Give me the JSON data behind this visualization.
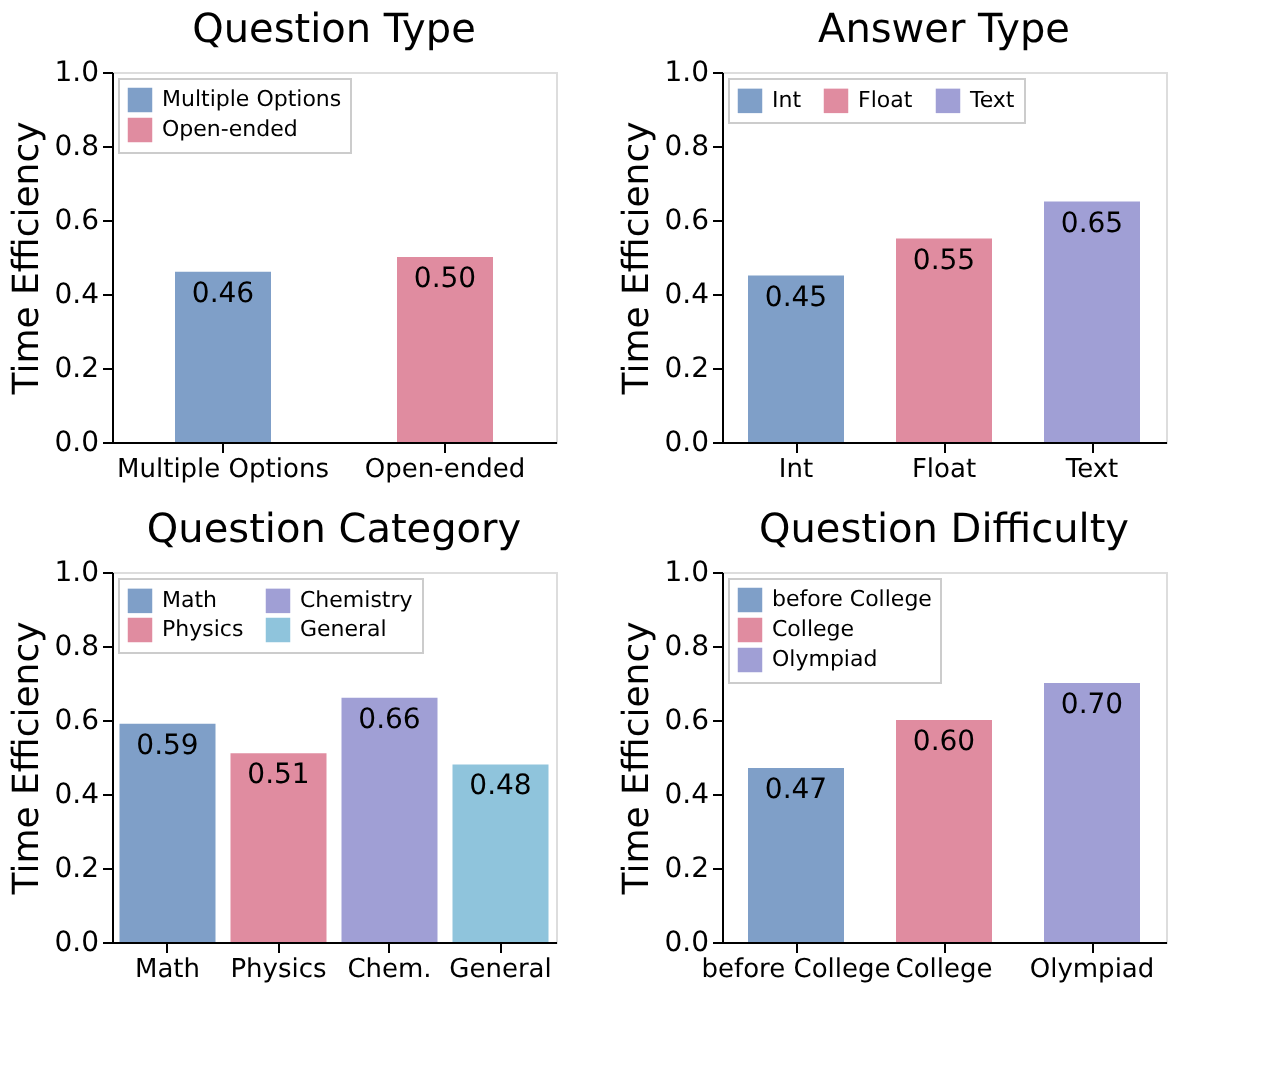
{
  "chart_data": [
    {
      "type": "bar",
      "title": "Question Type",
      "ylabel": "Time Efficiency",
      "categories": [
        "Multiple Options",
        "Open-ended"
      ],
      "ylim": [
        0,
        1
      ],
      "yticks": [
        {
          "value": 0,
          "label": "0.0"
        },
        {
          "value": 0.2,
          "label": "0.2"
        },
        {
          "value": 0.4,
          "label": "0.4"
        },
        {
          "value": 0.6,
          "label": "0.6"
        },
        {
          "value": 0.8,
          "label": "0.8"
        },
        {
          "value": 1.0,
          "label": "1.0"
        }
      ],
      "grid": false,
      "legend": "top left",
      "data_labels": true,
      "series": [
        {
          "name": "Multiple Options",
          "color": "#7f9fc8",
          "values": [
            0.46,
            null
          ]
        },
        {
          "name": "Open-ended",
          "color": "#e08ca0",
          "values": [
            null,
            0.5
          ],
          "value_labels": [
            null,
            "0.50"
          ]
        }
      ]
    },
    {
      "type": "bar",
      "title": "Answer Type",
      "ylabel": "Time Efficiency",
      "categories": [
        "Int",
        "Float",
        "Text"
      ],
      "ylim": [
        0,
        1
      ],
      "yticks": [
        {
          "value": 0,
          "label": "0.0"
        },
        {
          "value": 0.2,
          "label": "0.2"
        },
        {
          "value": 0.4,
          "label": "0.4"
        },
        {
          "value": 0.6,
          "label": "0.6"
        },
        {
          "value": 0.8,
          "label": "0.8"
        },
        {
          "value": 1.0,
          "label": "1.0"
        }
      ],
      "grid": false,
      "legend": "top",
      "data_labels": true,
      "series": [
        {
          "name": "Int",
          "color": "#7f9fc8",
          "values": [
            0.45,
            null,
            null
          ]
        },
        {
          "name": "Float",
          "color": "#e08ca0",
          "values": [
            null,
            0.55,
            null
          ]
        },
        {
          "name": "Text",
          "color": "#a09fd5",
          "values": [
            null,
            null,
            0.65
          ]
        }
      ]
    },
    {
      "type": "bar",
      "title": "Question Category",
      "ylabel": "Time Efficiency",
      "categories": [
        "Math",
        "Physics",
        "Chem.",
        "General"
      ],
      "ylim": [
        0,
        1
      ],
      "yticks": [
        {
          "value": 0,
          "label": "0.0"
        },
        {
          "value": 0.2,
          "label": "0.2"
        },
        {
          "value": 0.4,
          "label": "0.4"
        },
        {
          "value": 0.6,
          "label": "0.6"
        },
        {
          "value": 0.8,
          "label": "0.8"
        },
        {
          "value": 1.0,
          "label": "1.0"
        }
      ],
      "grid": false,
      "legend": "top",
      "data_labels": true,
      "series": [
        {
          "name": "Math",
          "color": "#7f9fc8",
          "values": [
            0.59,
            null,
            null,
            null
          ]
        },
        {
          "name": "Physics",
          "color": "#e08ca0",
          "values": [
            null,
            0.51,
            null,
            null
          ]
        },
        {
          "name": "Chemistry",
          "color": "#a09fd5",
          "values": [
            null,
            null,
            0.66,
            null
          ]
        },
        {
          "name": "General",
          "color": "#8fc4dc",
          "values": [
            null,
            null,
            null,
            0.48
          ]
        }
      ]
    },
    {
      "type": "bar",
      "title": "Question Difficulty",
      "ylabel": "Time Efficiency",
      "categories": [
        "before College",
        "College",
        "Olympiad"
      ],
      "ylim": [
        0,
        1
      ],
      "yticks": [
        {
          "value": 0,
          "label": "0.0"
        },
        {
          "value": 0.2,
          "label": "0.2"
        },
        {
          "value": 0.4,
          "label": "0.4"
        },
        {
          "value": 0.6,
          "label": "0.6"
        },
        {
          "value": 0.8,
          "label": "0.8"
        },
        {
          "value": 1.0,
          "label": "1.0"
        }
      ],
      "grid": false,
      "legend": "top left",
      "data_labels": true,
      "series": [
        {
          "name": "before College",
          "color": "#7f9fc8",
          "values": [
            0.47,
            null,
            null
          ]
        },
        {
          "name": "College",
          "color": "#e08ca0",
          "values": [
            null,
            0.6,
            null
          ],
          "value_labels": [
            null,
            "0.60",
            null
          ]
        },
        {
          "name": "Olympiad",
          "color": "#a09fd5",
          "values": [
            null,
            null,
            0.7
          ],
          "value_labels": [
            null,
            null,
            "0.70"
          ]
        }
      ]
    }
  ]
}
